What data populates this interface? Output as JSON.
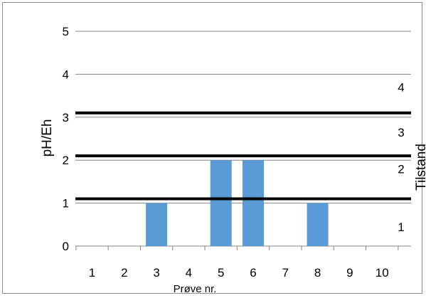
{
  "chart_data": {
    "type": "bar",
    "categories": [
      "1",
      "2",
      "3",
      "4",
      "5",
      "6",
      "7",
      "8",
      "9",
      "10"
    ],
    "values": [
      0,
      0,
      1,
      0,
      2,
      2,
      0,
      1,
      0,
      0
    ],
    "xlabel": "Prøve nr.",
    "ylabel": "pH/Eh",
    "ylabel_right": "Tilstand",
    "ylim": [
      0,
      5
    ],
    "yticks": [
      "0",
      "1",
      "2",
      "3",
      "4",
      "5"
    ],
    "threshold_lines": [
      1.1,
      2.1,
      3.1
    ],
    "zone_labels": [
      {
        "label": "1",
        "y": 0.45
      },
      {
        "label": "2",
        "y": 1.8
      },
      {
        "label": "3",
        "y": 2.65
      },
      {
        "label": "4",
        "y": 3.7
      }
    ],
    "grid": true,
    "bar_color": "#5b9bd5",
    "threshold_color": "#000000",
    "grid_color": "#868686"
  }
}
